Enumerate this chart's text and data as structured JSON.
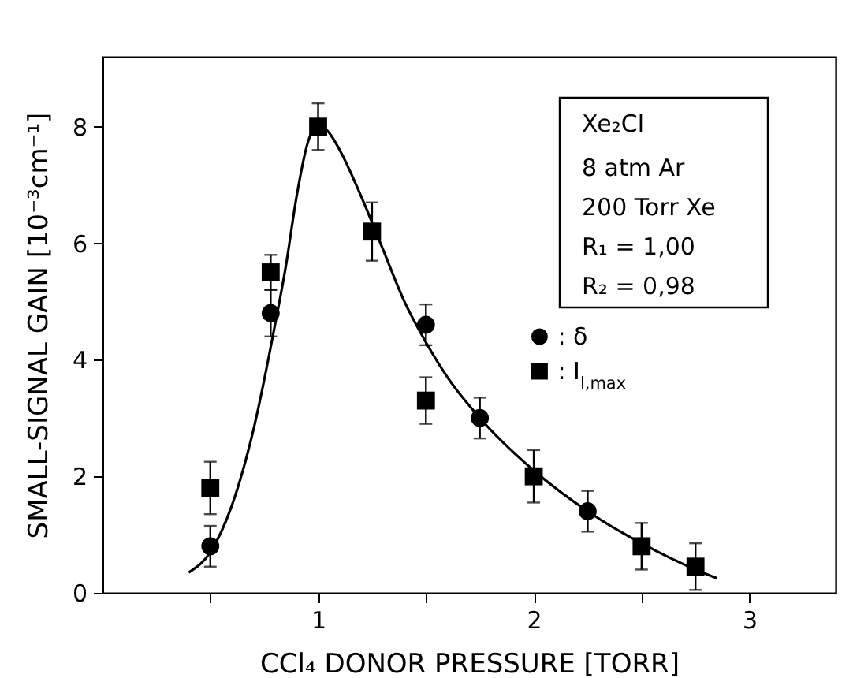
{
  "chart_data": {
    "type": "scatter",
    "xlabel": "CCl₄ DONOR PRESSURE [TORR]",
    "ylabel": "SMALL-SIGNAL GAIN [10⁻³cm⁻¹]",
    "xlim": [
      0,
      3.4
    ],
    "xticks": [
      {
        "value": 0.5,
        "label": null
      },
      1,
      {
        "value": 1.5,
        "label": null
      },
      2,
      {
        "value": 2.5,
        "label": null
      },
      3
    ],
    "ylim": [
      0,
      9.2
    ],
    "yticks": [
      0,
      2,
      4,
      6,
      8
    ],
    "grid": false,
    "legend": "right",
    "annotations": [
      "Xe₂Cl",
      "8 atm Ar",
      "200 Torr Xe",
      "R₁ = 1,00",
      "R₂ = 0,98"
    ],
    "series": [
      {
        "name": ": δ",
        "color": "#000000",
        "marker": "circle",
        "x": [
          0.5,
          0.78,
          1.5,
          1.75,
          2.25
        ],
        "values": [
          0.8,
          4.8,
          4.6,
          3.0,
          1.4
        ],
        "errors": [
          0.35,
          0.4,
          0.35,
          0.35,
          0.35
        ]
      },
      {
        "name": ": I$_{l,max}$",
        "color": "#000000",
        "marker": "square",
        "x": [
          0.5,
          0.78,
          1.0,
          1.25,
          1.5,
          2.0,
          2.5,
          2.75
        ],
        "values": [
          1.8,
          5.5,
          8.0,
          6.2,
          3.3,
          2.0,
          0.8,
          0.45
        ],
        "errors": [
          0.45,
          0.3,
          0.4,
          0.5,
          0.4,
          0.45,
          0.4,
          0.4
        ]
      },
      {
        "type": "line",
        "color": "#000000",
        "marker": "none",
        "x": [
          0.4,
          0.5,
          0.6,
          0.7,
          0.8,
          0.85,
          0.9,
          0.95,
          1.0,
          1.05,
          1.1,
          1.2,
          1.3,
          1.4,
          1.5,
          1.6,
          1.75,
          2.0,
          2.25,
          2.5,
          2.75,
          2.85
        ],
        "values": [
          0.35,
          0.7,
          1.5,
          2.8,
          4.6,
          5.6,
          6.8,
          7.7,
          8.05,
          7.9,
          7.6,
          6.8,
          5.9,
          5.0,
          4.3,
          3.7,
          3.0,
          2.1,
          1.4,
          0.85,
          0.4,
          0.25
        ]
      }
    ]
  }
}
